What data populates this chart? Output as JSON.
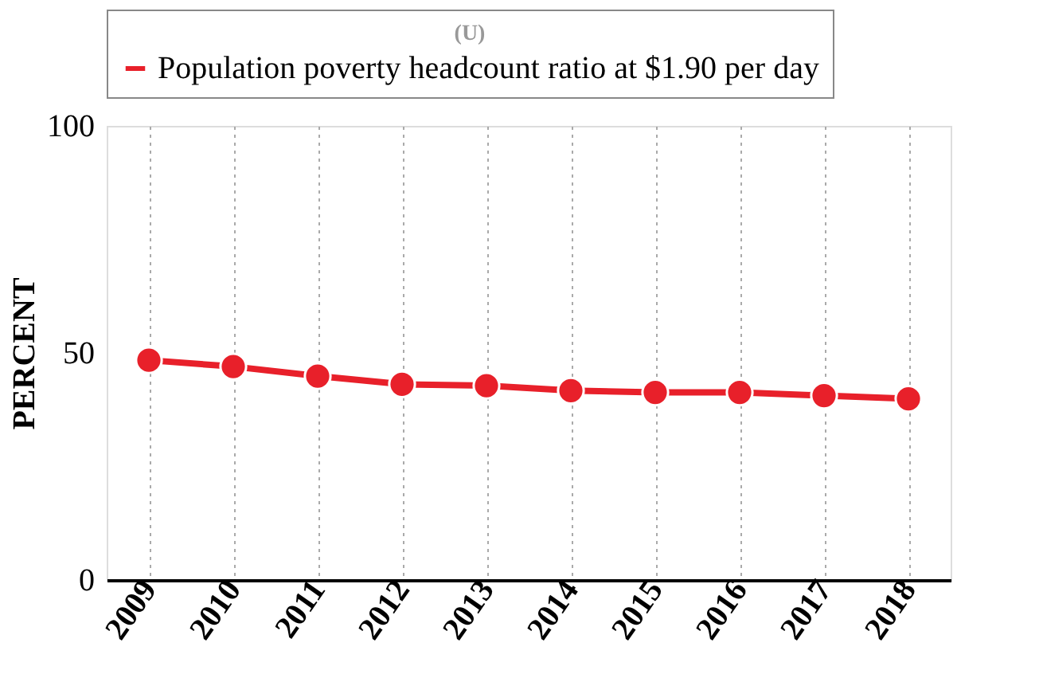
{
  "chart_data": {
    "type": "line",
    "legend_title": "(U)",
    "ylabel": "PERCENT",
    "categories": [
      "2009",
      "2010",
      "2011",
      "2012",
      "2013",
      "2014",
      "2015",
      "2016",
      "2017",
      "2018"
    ],
    "series": [
      {
        "name": "Population poverty headcount ratio at $1.90 per day",
        "color": "#e8202a",
        "values": [
          48.4,
          47.0,
          44.9,
          43.1,
          42.8,
          41.7,
          41.3,
          41.3,
          40.6,
          39.9
        ]
      }
    ],
    "ylim": [
      0,
      100
    ],
    "yticks": [
      0,
      50,
      100
    ],
    "grid": "x",
    "legend": "top",
    "marker": "circle",
    "line_style": "solid"
  }
}
